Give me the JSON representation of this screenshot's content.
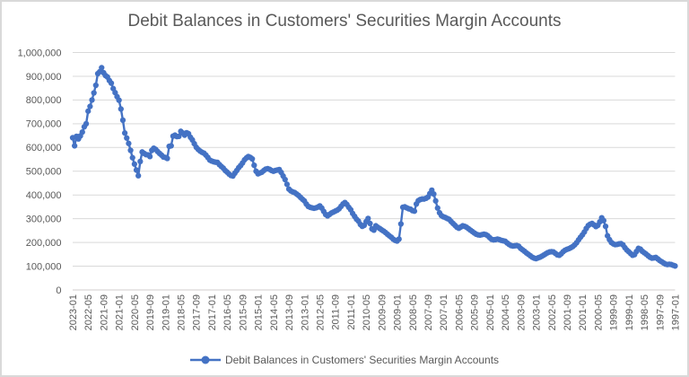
{
  "chart_data": {
    "type": "line",
    "title": "Debit Balances in Customers' Securities Margin Accounts",
    "x": [
      "2023-01",
      "2022-12",
      "2022-11",
      "2022-10",
      "2022-09",
      "2022-08",
      "2022-07",
      "2022-06",
      "2022-05",
      "2022-04",
      "2022-03",
      "2022-02",
      "2022-01",
      "2021-12",
      "2021-11",
      "2021-10",
      "2021-09",
      "2021-08",
      "2021-07",
      "2021-06",
      "2021-05",
      "2021-04",
      "2021-03",
      "2021-02",
      "2021-01",
      "2020-12",
      "2020-11",
      "2020-10",
      "2020-09",
      "2020-08",
      "2020-07",
      "2020-06",
      "2020-05",
      "2020-04",
      "2020-03",
      "2020-02",
      "2020-01",
      "2019-12",
      "2019-11",
      "2019-10",
      "2019-09",
      "2019-08",
      "2019-07",
      "2019-06",
      "2019-05",
      "2019-04",
      "2019-03",
      "2019-02",
      "2019-01",
      "2018-12",
      "2018-11",
      "2018-10",
      "2018-09",
      "2018-08",
      "2018-07",
      "2018-06",
      "2018-05",
      "2018-04",
      "2018-03",
      "2018-02",
      "2018-01",
      "2017-12",
      "2017-11",
      "2017-10",
      "2017-09",
      "2017-08",
      "2017-07",
      "2017-06",
      "2017-05",
      "2017-04",
      "2017-03",
      "2017-02",
      "2017-01",
      "2016-12",
      "2016-11",
      "2016-10",
      "2016-09",
      "2016-08",
      "2016-07",
      "2016-06",
      "2016-05",
      "2016-04",
      "2016-03",
      "2016-02",
      "2016-01",
      "2015-12",
      "2015-11",
      "2015-10",
      "2015-09",
      "2015-08",
      "2015-07",
      "2015-06",
      "2015-05",
      "2015-04",
      "2015-03",
      "2015-02",
      "2015-01",
      "2014-12",
      "2014-11",
      "2014-10",
      "2014-09",
      "2014-08",
      "2014-07",
      "2014-06",
      "2014-05",
      "2014-04",
      "2014-03",
      "2014-02",
      "2014-01",
      "2013-12",
      "2013-11",
      "2013-10",
      "2013-09",
      "2013-08",
      "2013-07",
      "2013-06",
      "2013-05",
      "2013-04",
      "2013-03",
      "2013-02",
      "2013-01",
      "2012-12",
      "2012-11",
      "2012-10",
      "2012-09",
      "2012-08",
      "2012-07",
      "2012-06",
      "2012-05",
      "2012-04",
      "2012-03",
      "2012-02",
      "2012-01",
      "2011-12",
      "2011-11",
      "2011-10",
      "2011-09",
      "2011-08",
      "2011-07",
      "2011-06",
      "2011-05",
      "2011-04",
      "2011-03",
      "2011-02",
      "2011-01",
      "2010-12",
      "2010-11",
      "2010-10",
      "2010-09",
      "2010-08",
      "2010-07",
      "2010-06",
      "2010-05",
      "2010-04",
      "2010-03",
      "2010-02",
      "2010-01",
      "2009-12",
      "2009-11",
      "2009-10",
      "2009-09",
      "2009-08",
      "2009-07",
      "2009-06",
      "2009-05",
      "2009-04",
      "2009-03",
      "2009-02",
      "2009-01",
      "2008-12",
      "2008-11",
      "2008-10",
      "2008-09",
      "2008-08",
      "2008-07",
      "2008-06",
      "2008-05",
      "2008-04",
      "2008-03",
      "2008-02",
      "2008-01",
      "2007-12",
      "2007-11",
      "2007-10",
      "2007-09",
      "2007-08",
      "2007-07",
      "2007-06",
      "2007-05",
      "2007-04",
      "2007-03",
      "2007-02",
      "2007-01",
      "2006-12",
      "2006-11",
      "2006-10",
      "2006-09",
      "2006-08",
      "2006-07",
      "2006-06",
      "2006-05",
      "2006-04",
      "2006-03",
      "2006-02",
      "2006-01",
      "2005-12",
      "2005-11",
      "2005-10",
      "2005-09",
      "2005-08",
      "2005-07",
      "2005-06",
      "2005-05",
      "2005-04",
      "2005-03",
      "2005-02",
      "2005-01",
      "2004-12",
      "2004-11",
      "2004-10",
      "2004-09",
      "2004-08",
      "2004-07",
      "2004-06",
      "2004-05",
      "2004-04",
      "2004-03",
      "2004-02",
      "2004-01",
      "2003-12",
      "2003-11",
      "2003-10",
      "2003-09",
      "2003-08",
      "2003-07",
      "2003-06",
      "2003-05",
      "2003-04",
      "2003-03",
      "2003-02",
      "2003-01",
      "2002-12",
      "2002-11",
      "2002-10",
      "2002-09",
      "2002-08",
      "2002-07",
      "2002-06",
      "2002-05",
      "2002-04",
      "2002-03",
      "2002-02",
      "2002-01",
      "2001-12",
      "2001-11",
      "2001-10",
      "2001-09",
      "2001-08",
      "2001-07",
      "2001-06",
      "2001-05",
      "2001-04",
      "2001-03",
      "2001-02",
      "2001-01",
      "2000-12",
      "2000-11",
      "2000-10",
      "2000-09",
      "2000-08",
      "2000-07",
      "2000-06",
      "2000-05",
      "2000-04",
      "2000-03",
      "2000-02",
      "2000-01",
      "1999-12",
      "1999-11",
      "1999-10",
      "1999-09",
      "1999-08",
      "1999-07",
      "1999-06",
      "1999-05",
      "1999-04",
      "1999-03",
      "1999-02",
      "1999-01",
      "1998-12",
      "1998-11",
      "1998-10",
      "1998-09",
      "1998-08",
      "1998-07",
      "1998-06",
      "1998-05",
      "1998-04",
      "1998-03",
      "1998-02",
      "1998-01",
      "1997-12",
      "1997-11",
      "1997-10",
      "1997-09",
      "1997-08",
      "1997-07",
      "1997-06",
      "1997-05",
      "1997-04",
      "1997-03",
      "1997-02",
      "1997-01"
    ],
    "series": [
      {
        "name": "Debit Balances in Customers' Securities Margin Accounts",
        "values": [
          641000,
          607000,
          647000,
          636000,
          649000,
          665000,
          687000,
          700000,
          753000,
          773000,
          800000,
          830000,
          862000,
          911000,
          919000,
          936000,
          915000,
          903000,
          897000,
          882000,
          871000,
          848000,
          831000,
          814000,
          799000,
          762000,
          715000,
          661000,
          640000,
          617000,
          588000,
          557000,
          530000,
          505000,
          481000,
          541000,
          581000,
          575000,
          570000,
          569000,
          562000,
          588000,
          597000,
          592000,
          583000,
          575000,
          568000,
          560000,
          558000,
          554000,
          605000,
          607000,
          648000,
          652000,
          646000,
          647000,
          668000,
          661000,
          652000,
          662000,
          658000,
          643000,
          632000,
          616000,
          601000,
          592000,
          585000,
          580000,
          576000,
          568000,
          558000,
          547000,
          543000,
          540000,
          538000,
          537000,
          528000,
          520000,
          513000,
          503000,
          496000,
          488000,
          482000,
          480000,
          492000,
          503000,
          515000,
          524000,
          535000,
          548000,
          556000,
          562000,
          558000,
          552000,
          525000,
          500000,
          489000,
          493000,
          496000,
          503000,
          509000,
          511000,
          508000,
          503000,
          500000,
          503000,
          505000,
          507000,
          495000,
          480000,
          465000,
          445000,
          425000,
          417000,
          413000,
          410000,
          404000,
          398000,
          390000,
          382000,
          375000,
          362000,
          352000,
          348000,
          346000,
          344000,
          346000,
          349000,
          354000,
          345000,
          331000,
          318000,
          312000,
          318000,
          324000,
          328000,
          332000,
          336000,
          342000,
          352000,
          362000,
          368000,
          360000,
          348000,
          338000,
          322000,
          310000,
          298000,
          290000,
          276000,
          268000,
          272000,
          288000,
          301000,
          280000,
          257000,
          252000,
          270000,
          264000,
          259000,
          253000,
          248000,
          242000,
          235000,
          228000,
          222000,
          214000,
          209000,
          206000,
          214000,
          278000,
          348000,
          350000,
          346000,
          342000,
          340000,
          334000,
          332000,
          362000,
          376000,
          381000,
          383000,
          383000,
          386000,
          391000,
          406000,
          420000,
          404000,
          375000,
          345000,
          325000,
          313000,
          308000,
          305000,
          301000,
          297000,
          288000,
          280000,
          272000,
          264000,
          260000,
          265000,
          270000,
          268000,
          264000,
          258000,
          252000,
          246000,
          240000,
          235000,
          232000,
          231000,
          233000,
          235000,
          233000,
          228000,
          220000,
          213000,
          211000,
          212000,
          214000,
          212000,
          209000,
          207000,
          205000,
          198000,
          192000,
          187000,
          185000,
          186000,
          187000,
          184000,
          175000,
          169000,
          163000,
          156000,
          150000,
          144000,
          138000,
          134000,
          132000,
          135000,
          138000,
          142000,
          147000,
          152000,
          157000,
          160000,
          161000,
          160000,
          154000,
          148000,
          146000,
          152000,
          161000,
          167000,
          171000,
          174000,
          178000,
          183000,
          190000,
          199000,
          211000,
          222000,
          232000,
          244000,
          259000,
          271000,
          277000,
          280000,
          274000,
          267000,
          272000,
          287000,
          304000,
          292000,
          268000,
          228000,
          212000,
          200000,
          194000,
          191000,
          192000,
          194000,
          195000,
          190000,
          178000,
          168000,
          161000,
          153000,
          146000,
          149000,
          162000,
          175000,
          172000,
          163000,
          157000,
          151000,
          144000,
          138000,
          134000,
          135000,
          137000,
          131000,
          124000,
          119000,
          114000,
          109000,
          107000,
          108000,
          107000,
          104000,
          101000
        ]
      }
    ],
    "x_axis": {
      "tick_interval": 8,
      "direction": "newest-first",
      "label_rotation_deg": -90
    },
    "y_axis": {
      "min": 0,
      "max": 1000000,
      "step": 100000,
      "tick_labels": [
        "0",
        "100,000",
        "200,000",
        "300,000",
        "400,000",
        "500,000",
        "600,000",
        "700,000",
        "800,000",
        "900,000",
        "1,000,000"
      ]
    },
    "grid": "horizontal",
    "legend_position": "bottom",
    "marker": "circle"
  },
  "title": "Debit Balances in Customers' Securities Margin Accounts",
  "legend": {
    "label": "Debit Balances in Customers' Securities Margin Accounts"
  },
  "colors": {
    "series": "#4472C4",
    "text": "#595959",
    "gridline": "#D9D9D9",
    "axis_line": "#D0CECE",
    "border": "#D9D9D9",
    "background": "#FFFFFF"
  }
}
